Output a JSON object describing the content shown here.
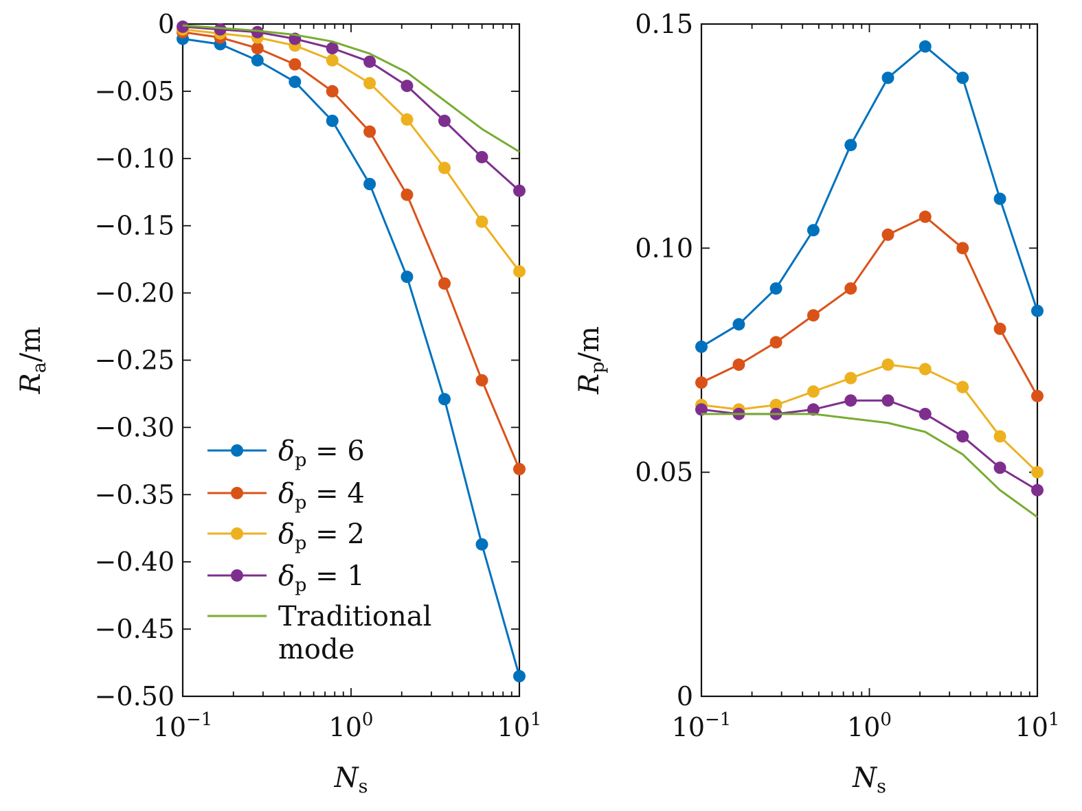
{
  "chart_data": [
    {
      "type": "line",
      "xscale": "log",
      "xlim": [
        0.1,
        10
      ],
      "ylim": [
        -0.5,
        0
      ],
      "x": [
        0.1,
        0.167,
        0.278,
        0.464,
        0.774,
        1.29,
        2.15,
        3.59,
        5.99,
        10
      ],
      "x_tick_values": [
        0.1,
        1,
        10
      ],
      "x_tick_bases": [
        "10",
        "10",
        "10"
      ],
      "x_tick_exponents": [
        "−1",
        "0",
        "1"
      ],
      "xlabel": "N",
      "xlabel_sub": "s",
      "ylabel": "R",
      "ylabel_sub": "a",
      "ylabel_unit": "/m",
      "y_ticks": [
        0,
        -0.05,
        -0.1,
        -0.15,
        -0.2,
        -0.25,
        -0.3,
        -0.35,
        -0.4,
        -0.45,
        -0.5
      ],
      "y_tick_labels": [
        "0",
        "−0.05",
        "−0.10",
        "−0.15",
        "−0.20",
        "−0.25",
        "−0.30",
        "−0.35",
        "−0.40",
        "−0.45",
        "−0.50"
      ],
      "legend_position": "lower-left",
      "series": [
        {
          "name": "δ",
          "name_sub": "p",
          "name_suffix": " = 6",
          "color": "#0072BD",
          "marker": true,
          "values": [
            -0.011,
            -0.015,
            -0.027,
            -0.043,
            -0.072,
            -0.119,
            -0.188,
            -0.279,
            -0.387,
            -0.485
          ]
        },
        {
          "name": "δ",
          "name_sub": "p",
          "name_suffix": " = 4",
          "color": "#D95319",
          "marker": true,
          "values": [
            -0.006,
            -0.01,
            -0.018,
            -0.03,
            -0.05,
            -0.08,
            -0.127,
            -0.193,
            -0.265,
            -0.331
          ]
        },
        {
          "name": "δ",
          "name_sub": "p",
          "name_suffix": " = 2",
          "color": "#EDB120",
          "marker": true,
          "values": [
            -0.004,
            -0.007,
            -0.01,
            -0.016,
            -0.027,
            -0.044,
            -0.071,
            -0.107,
            -0.147,
            -0.184
          ]
        },
        {
          "name": "δ",
          "name_sub": "p",
          "name_suffix": " = 1",
          "color": "#7E2F8E",
          "marker": true,
          "values": [
            -0.002,
            -0.004,
            -0.006,
            -0.011,
            -0.018,
            -0.028,
            -0.046,
            -0.072,
            -0.099,
            -0.124
          ]
        },
        {
          "name": "Traditional",
          "name_line2": "mode",
          "color": "#77AC30",
          "marker": false,
          "values": [
            -0.001,
            -0.003,
            -0.005,
            -0.008,
            -0.013,
            -0.022,
            -0.036,
            -0.057,
            -0.078,
            -0.095
          ]
        }
      ]
    },
    {
      "type": "line",
      "xscale": "log",
      "xlim": [
        0.1,
        10
      ],
      "ylim": [
        0,
        0.15
      ],
      "x": [
        0.1,
        0.167,
        0.278,
        0.464,
        0.774,
        1.29,
        2.15,
        3.59,
        5.99,
        10
      ],
      "x_tick_values": [
        0.1,
        1,
        10
      ],
      "x_tick_bases": [
        "10",
        "10",
        "10"
      ],
      "x_tick_exponents": [
        "−1",
        "0",
        "1"
      ],
      "xlabel": "N",
      "xlabel_sub": "s",
      "ylabel": "R",
      "ylabel_sub": "p",
      "ylabel_unit": "/m",
      "y_ticks": [
        0,
        0.05,
        0.1,
        0.15
      ],
      "y_tick_labels": [
        "0",
        "0.05",
        "0.10",
        "0.15"
      ],
      "series": [
        {
          "color": "#0072BD",
          "marker": true,
          "values": [
            0.078,
            0.083,
            0.091,
            0.104,
            0.123,
            0.138,
            0.145,
            0.138,
            0.111,
            0.086
          ]
        },
        {
          "color": "#D95319",
          "marker": true,
          "values": [
            0.07,
            0.074,
            0.079,
            0.085,
            0.091,
            0.103,
            0.107,
            0.1,
            0.082,
            0.067
          ]
        },
        {
          "color": "#EDB120",
          "marker": true,
          "values": [
            0.065,
            0.064,
            0.065,
            0.068,
            0.071,
            0.074,
            0.073,
            0.069,
            0.058,
            0.05
          ]
        },
        {
          "color": "#7E2F8E",
          "marker": true,
          "values": [
            0.064,
            0.063,
            0.063,
            0.064,
            0.066,
            0.066,
            0.063,
            0.058,
            0.051,
            0.046
          ]
        },
        {
          "color": "#77AC30",
          "marker": false,
          "values": [
            0.063,
            0.063,
            0.063,
            0.063,
            0.062,
            0.061,
            0.059,
            0.054,
            0.046,
            0.04
          ]
        }
      ]
    }
  ]
}
